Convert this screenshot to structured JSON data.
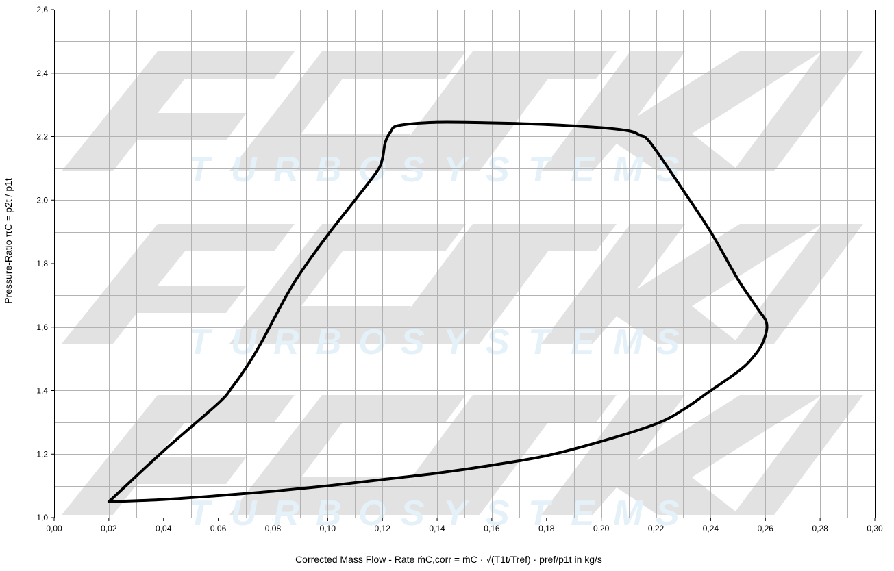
{
  "watermark": {
    "brand_text": "TURBOSYSTEMS",
    "logo_color": "#e2e2e2",
    "text_color": "#e4f1f9"
  },
  "chart_data": {
    "type": "line",
    "title": "",
    "xlabel": "Corrected Mass Flow - Rate ṁC,corr = ṁC · √(T1t/Tref) · pref/p1t in kg/s",
    "ylabel": "Pressure-Ratio πC = p2t / p1t",
    "xlim": [
      0.0,
      0.3
    ],
    "ylim": [
      1.0,
      2.6
    ],
    "x_ticks": [
      "0,00",
      "0,02",
      "0,04",
      "0,06",
      "0,08",
      "0,10",
      "0,12",
      "0,14",
      "0,16",
      "0,18",
      "0,20",
      "0,22",
      "0,24",
      "0,26",
      "0,28",
      "0,30"
    ],
    "y_ticks": [
      "1,0",
      "1,2",
      "1,4",
      "1,6",
      "1,8",
      "2,0",
      "2,2",
      "2,4",
      "2,6"
    ],
    "grid": true,
    "line_color": "#000000",
    "series": [
      {
        "name": "",
        "closed": true,
        "points": [
          [
            0.02,
            1.05
          ],
          [
            0.04,
            1.21
          ],
          [
            0.06,
            1.36
          ],
          [
            0.065,
            1.41
          ],
          [
            0.07,
            1.47
          ],
          [
            0.075,
            1.54
          ],
          [
            0.08,
            1.62
          ],
          [
            0.085,
            1.7
          ],
          [
            0.09,
            1.77
          ],
          [
            0.1,
            1.89
          ],
          [
            0.11,
            2.0
          ],
          [
            0.118,
            2.09
          ],
          [
            0.12,
            2.13
          ],
          [
            0.121,
            2.18
          ],
          [
            0.123,
            2.215
          ],
          [
            0.126,
            2.235
          ],
          [
            0.14,
            2.245
          ],
          [
            0.16,
            2.243
          ],
          [
            0.18,
            2.238
          ],
          [
            0.2,
            2.228
          ],
          [
            0.21,
            2.218
          ],
          [
            0.214,
            2.205
          ],
          [
            0.218,
            2.18
          ],
          [
            0.23,
            2.03
          ],
          [
            0.24,
            1.9
          ],
          [
            0.25,
            1.75
          ],
          [
            0.257,
            1.66
          ],
          [
            0.2605,
            1.61
          ],
          [
            0.259,
            1.55
          ],
          [
            0.255,
            1.5
          ],
          [
            0.25,
            1.46
          ],
          [
            0.24,
            1.4
          ],
          [
            0.23,
            1.34
          ],
          [
            0.22,
            1.295
          ],
          [
            0.2,
            1.24
          ],
          [
            0.18,
            1.195
          ],
          [
            0.16,
            1.165
          ],
          [
            0.14,
            1.14
          ],
          [
            0.12,
            1.12
          ],
          [
            0.1,
            1.1
          ],
          [
            0.08,
            1.083
          ],
          [
            0.06,
            1.069
          ],
          [
            0.04,
            1.057
          ],
          [
            0.02,
            1.05
          ]
        ]
      }
    ]
  }
}
